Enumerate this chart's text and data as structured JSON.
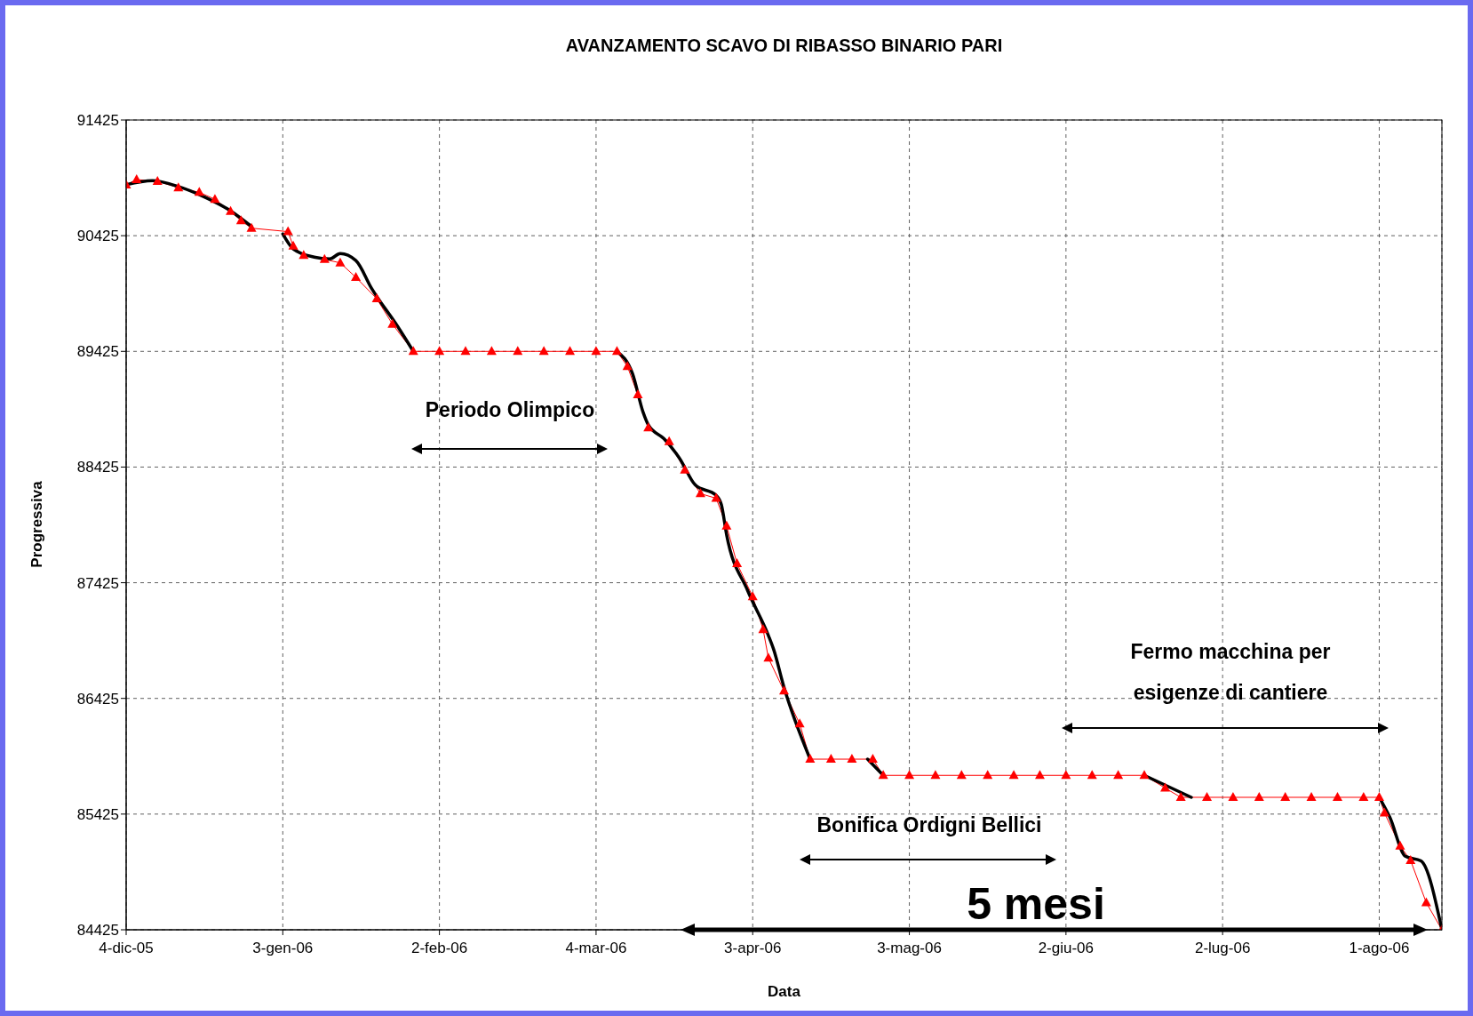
{
  "chart_data": {
    "type": "line",
    "title": "AVANZAMENTO SCAVO DI RIBASSO BINARIO PARI",
    "xlabel": "Data",
    "ylabel": "Progressiva",
    "xlim": [
      "2005-12-04",
      "2006-08-13"
    ],
    "xticks": [
      {
        "value": "2005-12-04",
        "label": "4-dic-05"
      },
      {
        "value": "2006-01-03",
        "label": "3-gen-06"
      },
      {
        "value": "2006-02-02",
        "label": "2-feb-06"
      },
      {
        "value": "2006-03-04",
        "label": "4-mar-06"
      },
      {
        "value": "2006-04-03",
        "label": "3-apr-06"
      },
      {
        "value": "2006-05-03",
        "label": "3-mag-06"
      },
      {
        "value": "2006-06-02",
        "label": "2-giu-06"
      },
      {
        "value": "2006-07-02",
        "label": "2-lug-06"
      },
      {
        "value": "2006-08-01",
        "label": "1-ago-06"
      }
    ],
    "ylim": [
      84425,
      91425
    ],
    "yticks": [
      84425,
      85425,
      86425,
      87425,
      88425,
      89425,
      90425,
      91425
    ],
    "grid": true,
    "series": [
      {
        "color": "#ff0000",
        "marker": "triangle",
        "line_style": "solid",
        "x": [
          "2005-12-04",
          "2005-12-06",
          "2005-12-10",
          "2005-12-14",
          "2005-12-18",
          "2005-12-21",
          "2005-12-24",
          "2005-12-26",
          "2005-12-28",
          "2006-01-04",
          "2006-01-05",
          "2006-01-07",
          "2006-01-11",
          "2006-01-14",
          "2006-01-17",
          "2006-01-21",
          "2006-01-24",
          "2006-01-28",
          "2006-02-02",
          "2006-02-07",
          "2006-02-12",
          "2006-02-17",
          "2006-02-22",
          "2006-02-27",
          "2006-03-04",
          "2006-03-08",
          "2006-03-10",
          "2006-03-12",
          "2006-03-14",
          "2006-03-18",
          "2006-03-21",
          "2006-03-24",
          "2006-03-27",
          "2006-03-29",
          "2006-03-31",
          "2006-04-03",
          "2006-04-05",
          "2006-04-06",
          "2006-04-09",
          "2006-04-12",
          "2006-04-14",
          "2006-04-18",
          "2006-04-22",
          "2006-04-26",
          "2006-04-28",
          "2006-05-03",
          "2006-05-08",
          "2006-05-13",
          "2006-05-18",
          "2006-05-23",
          "2006-05-28",
          "2006-06-02",
          "2006-06-07",
          "2006-06-12",
          "2006-06-17",
          "2006-06-21",
          "2006-06-24",
          "2006-06-29",
          "2006-07-04",
          "2006-07-09",
          "2006-07-14",
          "2006-07-19",
          "2006-07-24",
          "2006-07-29",
          "2006-08-01",
          "2006-08-02",
          "2006-08-05",
          "2006-08-07",
          "2006-08-10",
          "2006-08-13"
        ],
        "values": [
          90865,
          90910,
          90895,
          90840,
          90800,
          90740,
          90635,
          90555,
          90490,
          90460,
          90335,
          90255,
          90220,
          90190,
          90065,
          89880,
          89660,
          89425,
          89425,
          89425,
          89425,
          89425,
          89425,
          89425,
          89425,
          89425,
          89295,
          89050,
          88765,
          88645,
          88400,
          88195,
          88155,
          87915,
          87590,
          87305,
          87020,
          86775,
          86490,
          86205,
          85900,
          85900,
          85900,
          85900,
          85760,
          85760,
          85760,
          85760,
          85760,
          85760,
          85760,
          85760,
          85760,
          85760,
          85760,
          85650,
          85570,
          85570,
          85570,
          85570,
          85570,
          85570,
          85570,
          85570,
          85570,
          85435,
          85150,
          85025,
          84660,
          84425
        ]
      },
      {
        "color": "#000000",
        "marker": "none",
        "line_style": "solid",
        "x": [
          "2005-12-04",
          "2005-12-09",
          "2005-12-14",
          "2005-12-19",
          "2005-12-24",
          "2005-12-28",
          "2005-12-31",
          "2006-01-03",
          "2006-01-05",
          "2006-01-09",
          "2006-01-12",
          "2006-01-14",
          "2006-01-17",
          "2006-01-20",
          "2006-01-25",
          "2006-01-28",
          "2006-02-15",
          "2006-03-08",
          "2006-03-11",
          "2006-03-13",
          "2006-03-14",
          "2006-03-17",
          "2006-03-20",
          "2006-03-23",
          "2006-03-27",
          "2006-03-28",
          "2006-03-29",
          "2006-04-02",
          "2006-04-06",
          "2006-04-07",
          "2006-04-09",
          "2006-04-14",
          "2006-04-20",
          "2006-04-25",
          "2006-04-28",
          "2006-05-20",
          "2006-06-17",
          "2006-06-26",
          "2006-07-15",
          "2006-08-01",
          "2006-08-03",
          "2006-08-06",
          "2006-08-09",
          "2006-08-13"
        ],
        "values": [
          90865,
          90900,
          90850,
          90760,
          90640,
          90505,
          null,
          90440,
          90310,
          90240,
          90225,
          90270,
          90210,
          89970,
          89640,
          89425,
          null,
          89425,
          89230,
          88900,
          88790,
          88670,
          88500,
          88270,
          88180,
          88100,
          87840,
          87360,
          86970,
          86850,
          86520,
          85900,
          null,
          85900,
          85760,
          null,
          85760,
          85570,
          null,
          85570,
          85400,
          85060,
          85020,
          84425
        ]
      }
    ],
    "annotations": [
      "Periodo Olimpico",
      "Fermo macchina per esigenze di cantiere",
      "Bonifica Ordigni Bellici",
      "5 mesi"
    ]
  }
}
